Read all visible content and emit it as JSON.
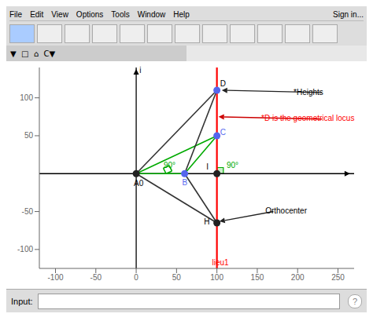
{
  "chart_data": {
    "type": "geometry",
    "xlim": [
      -120,
      270
    ],
    "ylim": [
      -125,
      140
    ],
    "xticks": [
      -100,
      -50,
      0,
      50,
      100,
      150,
      200,
      250
    ],
    "yticks": [
      -100,
      -50,
      50,
      100
    ],
    "grid": false,
    "hlines": [
      {
        "y": 0,
        "color": "#000000"
      }
    ],
    "vlines": [
      {
        "x": 0,
        "color": "#000000"
      },
      {
        "x": 100,
        "color": "#ff0000"
      }
    ],
    "lines": [
      {
        "color": "#00aa00",
        "x": [
          0,
          60,
          100,
          0
        ],
        "y": [
          0,
          0,
          50,
          0
        ]
      },
      {
        "color": "#333333",
        "x": [
          0,
          100
        ],
        "y": [
          0,
          110
        ]
      },
      {
        "color": "#333333",
        "x": [
          60,
          100
        ],
        "y": [
          0,
          110
        ]
      },
      {
        "color": "#333333",
        "x": [
          0,
          100
        ],
        "y": [
          0,
          -65
        ]
      },
      {
        "color": "#333333",
        "x": [
          60,
          100
        ],
        "y": [
          0,
          -65
        ]
      },
      {
        "color": "#00aa00",
        "x": [
          37,
          44.2505,
          40.8696,
          33.6191,
          37
        ],
        "y": [
          0,
          3.3809,
          10.6314,
          7.2505,
          0
        ]
      }
    ],
    "rects": [
      {
        "x1": 100,
        "x2": 108,
        "y1": 0,
        "y2": 8,
        "color": "#00aa00",
        "fill": "#cceecc"
      }
    ],
    "points": [
      {
        "x": 60,
        "y": 0,
        "color": "#5566ee"
      },
      {
        "x": 100,
        "y": 50,
        "color": "#5566ee"
      },
      {
        "x": 100,
        "y": 110,
        "color": "#5566ee"
      },
      {
        "x": 0,
        "y": 0,
        "color": "#222222"
      },
      {
        "x": 100,
        "y": 0,
        "color": "#222222"
      },
      {
        "x": 100,
        "y": -65,
        "color": "#222222"
      }
    ],
    "arrows": [
      {
        "from": [
          258,
          0
        ],
        "to": [
          265,
          0
        ],
        "color": "#000000"
      },
      {
        "from": [
          0,
          131
        ],
        "to": [
          0,
          138
        ],
        "color": "#000000"
      },
      {
        "from": [
          230,
          107
        ],
        "to": [
          106,
          110
        ],
        "color": "#222222"
      },
      {
        "from": [
          230,
          72
        ],
        "to": [
          102,
          75
        ],
        "color": "#cc0000"
      },
      {
        "from": [
          170,
          -50
        ],
        "to": [
          103,
          -63
        ],
        "color": "#222222"
      }
    ],
    "annotations": [
      {
        "text": "*Heights",
        "x": 195,
        "y": 107,
        "color": "#000000"
      },
      {
        "text": "Orthocenter",
        "x": 160,
        "y": -50,
        "color": "#000000"
      },
      {
        "text": "D",
        "x": 104,
        "y": 118,
        "color": "#000000"
      },
      {
        "text": "H",
        "x": 84,
        "y": -64,
        "color": "#000000"
      },
      {
        "text": "A0",
        "x": -3,
        "y": -14,
        "color": "#000000"
      },
      {
        "text": "i",
        "x": 4,
        "y": 136,
        "color": "#000000"
      },
      {
        "text": "C",
        "x": 104,
        "y": 54,
        "color": "#5566ee"
      },
      {
        "text": "B",
        "x": 57,
        "y": -13,
        "color": "#5566ee"
      },
      {
        "text": "90°",
        "x": 34,
        "y": 10,
        "color": "#00aa00"
      },
      {
        "text": "90°",
        "x": 112,
        "y": 10,
        "color": "#00aa00"
      },
      {
        "text": "*D is the geometrical locus",
        "x": 155,
        "y": 72,
        "color": "#ff0000"
      },
      {
        "text": "lieu1",
        "x": 94,
        "y": -118,
        "color": "#ff0000"
      },
      {
        "text": "I",
        "x": 87,
        "y": 8,
        "color": "#000000"
      }
    ],
    "menu": [
      "File",
      "Edit",
      "View",
      "Options",
      "Tools",
      "Window",
      "Help"
    ],
    "sign_in": "Sign in...",
    "toolbar": "▼  □  ⌂  C▼",
    "input_label": "Input:",
    "help": "?"
  }
}
